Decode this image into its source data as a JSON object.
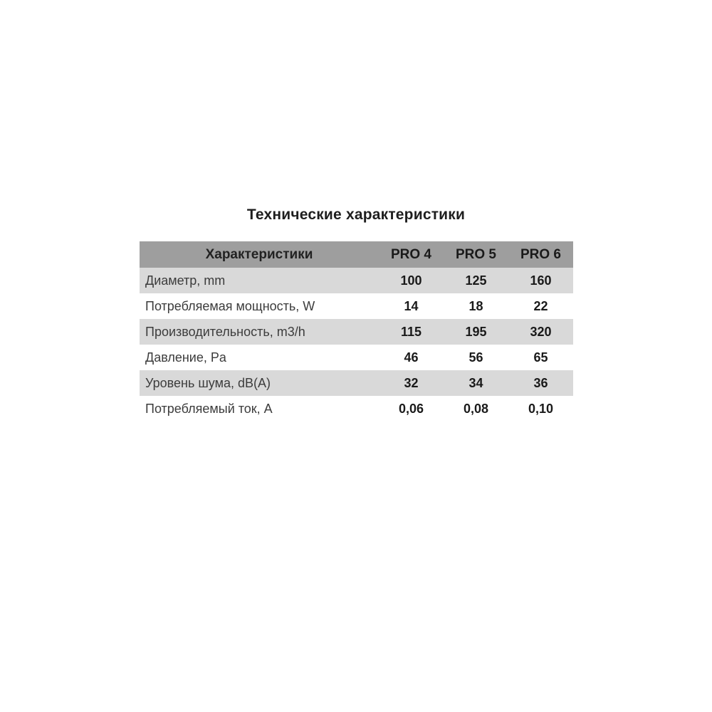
{
  "page": {
    "title": "Технические характеристики"
  },
  "chart_data": {
    "type": "table",
    "title": "Технические характеристики",
    "columns": [
      "Характеристики",
      "PRO 4",
      "PRO 5",
      "PRO 6"
    ],
    "rows": [
      [
        "Диаметр, mm",
        "100",
        "125",
        "160"
      ],
      [
        "Потребляемая мощность, W",
        "14",
        "18",
        "22"
      ],
      [
        "Производительность, m3/h",
        "115",
        "195",
        "320"
      ],
      [
        "Давление, Pa",
        "46",
        "56",
        "65"
      ],
      [
        "Уровень шума, dB(A)",
        "32",
        "34",
        "36"
      ],
      [
        "Потребляемый ток, A",
        "0,06",
        "0,08",
        "0,10"
      ]
    ]
  },
  "table": {
    "header": {
      "label": "Характеристики",
      "col1": "PRO 4",
      "col2": "PRO 5",
      "col3": "PRO 6"
    },
    "rows": [
      {
        "label": "Диаметр, mm",
        "values": [
          "100",
          "125",
          "160"
        ]
      },
      {
        "label": "Потребляемая мощность, W",
        "values": [
          "14",
          "18",
          "22"
        ]
      },
      {
        "label": "Производительность, m3/h",
        "values": [
          "115",
          "195",
          "320"
        ]
      },
      {
        "label": "Давление, Pa",
        "values": [
          "46",
          "56",
          "65"
        ]
      },
      {
        "label": "Уровень шума, dB(A)",
        "values": [
          "32",
          "34",
          "36"
        ]
      },
      {
        "label": "Потребляемый ток, A",
        "values": [
          "0,06",
          "0,08",
          "0,10"
        ]
      }
    ],
    "colors": {
      "header_bg": "#9e9e9e",
      "alt_row_bg": "#d9d9d9",
      "plain_row_bg": "#ffffff",
      "label_text": "#3c3c3c",
      "value_text": "#1a1a1a",
      "title_text": "#1e1e1e"
    }
  }
}
